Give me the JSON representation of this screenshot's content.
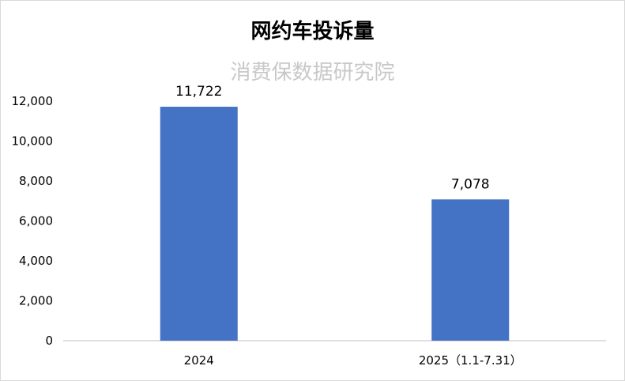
{
  "chart_data": {
    "type": "bar",
    "title": "网约车投诉量",
    "watermark": "消费保数据研究院",
    "categories": [
      "2024",
      "2025（1.1-7.31）"
    ],
    "values": [
      11722,
      7078
    ],
    "data_labels": [
      "11,722",
      "7,078"
    ],
    "yticks": [
      "0",
      "2,000",
      "4,000",
      "6,000",
      "8,000",
      "10,000",
      "12,000"
    ],
    "ylim": [
      0,
      12000
    ],
    "grid": false,
    "bar_color": "#4472c4"
  }
}
